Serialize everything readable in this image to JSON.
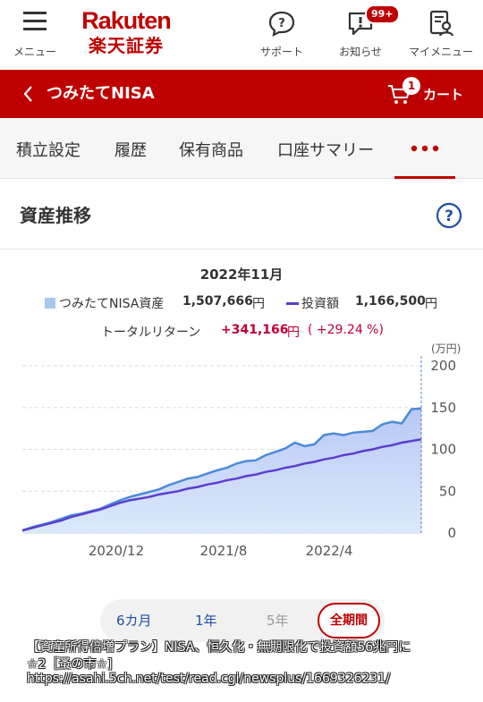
{
  "header": {
    "menu_label": "メニュー",
    "logo_en": "Rakuten",
    "logo_ja": "楽天証券",
    "support_label": "サポート",
    "notice_label": "お知らせ",
    "notice_badge": "99+",
    "mymenu_label": "マイメニュー"
  },
  "nav": {
    "title": "つみたてNISA",
    "cart_label": "カート",
    "cart_count": "1"
  },
  "tabs": [
    "積立設定",
    "履歴",
    "保有商品",
    "口座サマリー"
  ],
  "section": {
    "title": "資産推移"
  },
  "summary": {
    "period": "2022年11月",
    "asset_label": "つみたてNISA資産",
    "asset_value": "1,507,666",
    "unit": "円",
    "invest_label": "投資額",
    "invest_value": "1,166,500",
    "return_label": "トータルリターン",
    "return_value": "+341,166",
    "return_pct": "( +29.24 %)"
  },
  "chart_data": {
    "type": "area",
    "y_unit_label": "(万円)",
    "ylim": [
      0,
      200
    ],
    "y_ticks": [
      "0",
      "50",
      "100",
      "150",
      "200"
    ],
    "x_ticks": [
      "2020/12",
      "2021/8",
      "2022/4"
    ],
    "grid": true,
    "series": [
      {
        "name": "つみたてNISA資産",
        "color": "#4a8ad8",
        "values": [
          3,
          7,
          10,
          13,
          17,
          21,
          23,
          26,
          29,
          34,
          39,
          43,
          46,
          49,
          52,
          57,
          61,
          65,
          67,
          71,
          75,
          78,
          83,
          86,
          87,
          93,
          97,
          101,
          108,
          104,
          106,
          117,
          119,
          117,
          120,
          121,
          122,
          130,
          133,
          131,
          148,
          149
        ]
      },
      {
        "name": "投資額",
        "color": "#5a3fcf",
        "values": [
          3,
          6,
          9,
          12,
          15,
          19,
          22,
          25,
          28,
          32,
          36,
          39,
          41,
          43,
          46,
          48,
          50,
          53,
          55,
          58,
          60,
          63,
          65,
          68,
          70,
          73,
          75,
          78,
          80,
          83,
          85,
          88,
          90,
          93,
          95,
          98,
          100,
          103,
          105,
          108,
          110,
          112
        ]
      }
    ]
  },
  "period_buttons": [
    {
      "label": "6カ月"
    },
    {
      "label": "1年"
    },
    {
      "label": "5年"
    },
    {
      "label": "全期間"
    }
  ],
  "caption": {
    "line1": "【資産所得倍増プラン】NISA、恒久化・無期限化で投資額56兆円に",
    "line2": "☆2［蚤の市☆]",
    "line3": "https://asahi.5ch.net/test/read.cgi/newsplus/1669326231/"
  },
  "colors": {
    "brand_red": "#bf0000",
    "asset_line": "#4a8ad8",
    "invest_line": "#5a3fcf",
    "return_red": "#bf0035"
  }
}
